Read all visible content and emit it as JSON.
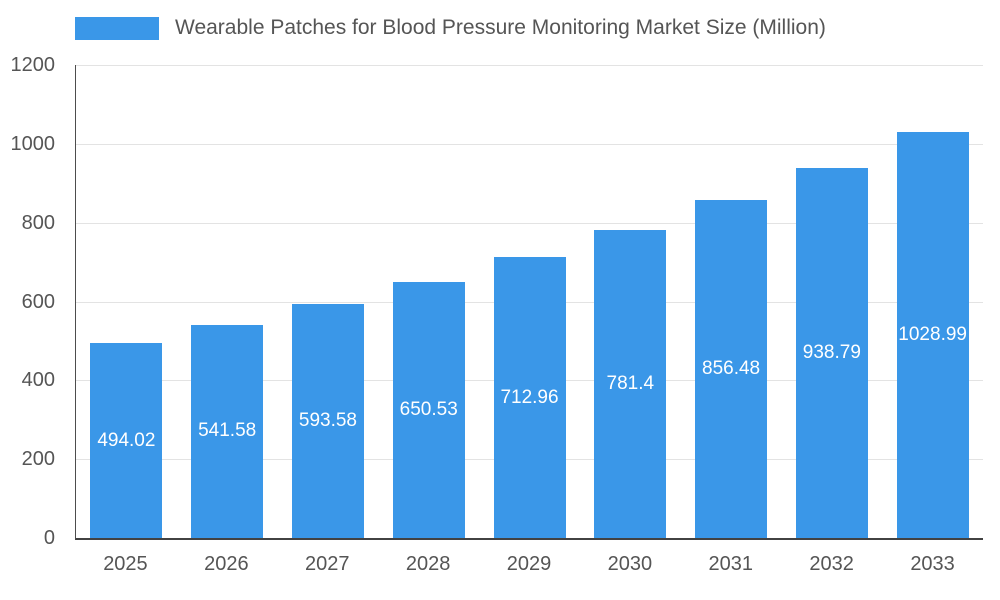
{
  "chart_data": {
    "type": "bar",
    "title": "Wearable Patches for Blood Pressure Monitoring Market Size (Million)",
    "categories": [
      "2025",
      "2026",
      "2027",
      "2028",
      "2029",
      "2030",
      "2031",
      "2032",
      "2033"
    ],
    "values": [
      494.02,
      541.58,
      593.58,
      650.53,
      712.96,
      781.4,
      856.48,
      938.79,
      1028.99
    ],
    "value_labels": [
      "494.02",
      "541.58",
      "593.58",
      "650.53",
      "712.96",
      "781.4",
      "856.48",
      "938.79",
      "1028.99"
    ],
    "xlabel": "",
    "ylabel": "",
    "ylim": [
      0,
      1200
    ],
    "yticks": [
      0,
      200,
      400,
      600,
      800,
      1000,
      1200
    ],
    "grid": true,
    "legend_position": "top",
    "bar_color": "#3a97e8",
    "value_label_color": "#ffffff",
    "axis_text_color": "#555555",
    "grid_color": "#e3e3e3",
    "background": "#ffffff"
  }
}
